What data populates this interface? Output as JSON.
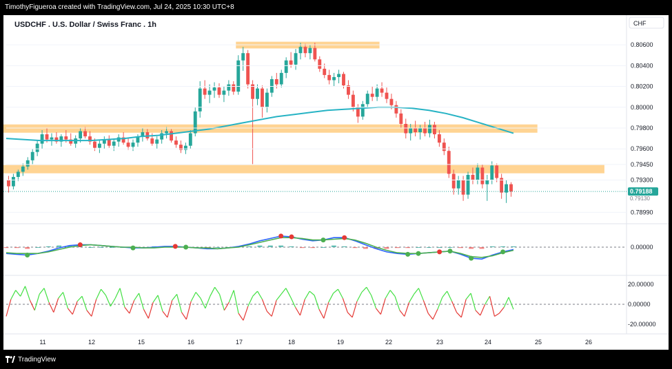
{
  "header": {
    "text": "TimothyFigueroa created with TradingView.com, Jul 24, 2025 10:30 UTC+8"
  },
  "footer": {
    "logo_icon": "tradingview-logo-icon",
    "text": "TradingView"
  },
  "chart_data": {
    "type": "candlestick",
    "title": "USDCHF . U.S. Dollar / Swiss Franc . 1h",
    "currency_label": "CHF",
    "last_price_label": "0.79188",
    "last_price_secondary": "0.79130",
    "price_axis_ticks": [
      "0.80600",
      "0.80400",
      "0.80200",
      "0.80000",
      "0.79800",
      "0.79600",
      "0.79450",
      "0.79300",
      "0.78990"
    ],
    "ylim": [
      0.789,
      0.807
    ],
    "x_ticks": [
      "11",
      "12",
      "15",
      "16",
      "17",
      "18",
      "19",
      "22",
      "23",
      "24",
      "25",
      "26"
    ],
    "x_tick_dates": [
      11,
      12,
      15,
      16,
      17,
      18,
      19,
      22,
      23,
      24,
      25,
      26
    ],
    "colors": {
      "up": "#26a69a",
      "down": "#ef5350",
      "zone": "#ffcc80",
      "ma": "#26b3c4",
      "macd": "#2962ff",
      "signal": "#4caf50",
      "lower_up": "#42e042",
      "lower_down": "#e53935",
      "last_price": "#26a69a"
    },
    "ohlc": [
      [
        0.793,
        0.7934,
        0.7918,
        0.7924
      ],
      [
        0.7924,
        0.7936,
        0.7921,
        0.7933
      ],
      [
        0.7933,
        0.794,
        0.7929,
        0.7938
      ],
      [
        0.7938,
        0.7946,
        0.7934,
        0.7943
      ],
      [
        0.7943,
        0.7952,
        0.794,
        0.7949
      ],
      [
        0.7949,
        0.796,
        0.7945,
        0.7957
      ],
      [
        0.7957,
        0.7968,
        0.7953,
        0.7965
      ],
      [
        0.7965,
        0.7978,
        0.796,
        0.7974
      ],
      [
        0.7974,
        0.798,
        0.7966,
        0.7969
      ],
      [
        0.7969,
        0.7975,
        0.7963,
        0.7971
      ],
      [
        0.7971,
        0.7976,
        0.7965,
        0.7967
      ],
      [
        0.7967,
        0.7974,
        0.7962,
        0.7972
      ],
      [
        0.7972,
        0.7978,
        0.7966,
        0.7969
      ],
      [
        0.7969,
        0.7975,
        0.7963,
        0.7965
      ],
      [
        0.7965,
        0.7973,
        0.7961,
        0.797
      ],
      [
        0.797,
        0.798,
        0.7966,
        0.7977
      ],
      [
        0.7977,
        0.7981,
        0.797,
        0.7972
      ],
      [
        0.7972,
        0.7977,
        0.7964,
        0.7967
      ],
      [
        0.7967,
        0.797,
        0.7958,
        0.7961
      ],
      [
        0.7961,
        0.7968,
        0.7956,
        0.7965
      ],
      [
        0.7965,
        0.7972,
        0.796,
        0.7969
      ],
      [
        0.7969,
        0.7973,
        0.7961,
        0.7963
      ],
      [
        0.7963,
        0.797,
        0.7958,
        0.7967
      ],
      [
        0.7967,
        0.7974,
        0.7962,
        0.7971
      ],
      [
        0.7971,
        0.7976,
        0.7964,
        0.7966
      ],
      [
        0.7966,
        0.7971,
        0.7959,
        0.7962
      ],
      [
        0.7962,
        0.7969,
        0.7958,
        0.7966
      ],
      [
        0.7966,
        0.7974,
        0.7962,
        0.7972
      ],
      [
        0.7972,
        0.798,
        0.7967,
        0.7976
      ],
      [
        0.7976,
        0.7979,
        0.7968,
        0.797
      ],
      [
        0.797,
        0.7975,
        0.7963,
        0.7965
      ],
      [
        0.7965,
        0.7972,
        0.796,
        0.7969
      ],
      [
        0.7969,
        0.7978,
        0.7965,
        0.7975
      ],
      [
        0.7975,
        0.7981,
        0.797,
        0.7977
      ],
      [
        0.7977,
        0.7979,
        0.7966,
        0.7968
      ],
      [
        0.7968,
        0.7972,
        0.7961,
        0.7964
      ],
      [
        0.7964,
        0.7968,
        0.7956,
        0.7959
      ],
      [
        0.7959,
        0.7966,
        0.7955,
        0.7963
      ],
      [
        0.7963,
        0.7978,
        0.796,
        0.7975
      ],
      [
        0.7975,
        0.8,
        0.7972,
        0.7996
      ],
      [
        0.7996,
        0.8025,
        0.799,
        0.8018
      ],
      [
        0.8018,
        0.8026,
        0.8008,
        0.8012
      ],
      [
        0.8012,
        0.8022,
        0.8004,
        0.8016
      ],
      [
        0.8016,
        0.8024,
        0.8009,
        0.8019
      ],
      [
        0.8019,
        0.8023,
        0.8009,
        0.8012
      ],
      [
        0.8012,
        0.802,
        0.8005,
        0.8016
      ],
      [
        0.8016,
        0.8026,
        0.8011,
        0.8022
      ],
      [
        0.8022,
        0.8025,
        0.8012,
        0.8015
      ],
      [
        0.8015,
        0.805,
        0.8012,
        0.8045
      ],
      [
        0.8045,
        0.8058,
        0.8035,
        0.8052
      ],
      [
        0.8052,
        0.8055,
        0.8018,
        0.8022
      ],
      [
        0.8022,
        0.8026,
        0.7945,
        0.8008
      ],
      [
        0.8008,
        0.8022,
        0.8002,
        0.8018
      ],
      [
        0.8018,
        0.8021,
        0.799,
        0.8
      ],
      [
        0.8,
        0.8018,
        0.7995,
        0.8014
      ],
      [
        0.8014,
        0.803,
        0.801,
        0.8027
      ],
      [
        0.8027,
        0.8033,
        0.8018,
        0.8022
      ],
      [
        0.8022,
        0.8036,
        0.8019,
        0.8033
      ],
      [
        0.8033,
        0.8048,
        0.8028,
        0.8045
      ],
      [
        0.8045,
        0.8053,
        0.8038,
        0.8041
      ],
      [
        0.8041,
        0.8056,
        0.8036,
        0.8052
      ],
      [
        0.8052,
        0.8062,
        0.8046,
        0.8058
      ],
      [
        0.8058,
        0.8061,
        0.8048,
        0.8052
      ],
      [
        0.8052,
        0.806,
        0.8046,
        0.8057
      ],
      [
        0.8057,
        0.8062,
        0.8044,
        0.8046
      ],
      [
        0.8046,
        0.8049,
        0.8034,
        0.8037
      ],
      [
        0.8037,
        0.8042,
        0.8028,
        0.8031
      ],
      [
        0.8031,
        0.8036,
        0.8022,
        0.8026
      ],
      [
        0.8026,
        0.8033,
        0.802,
        0.8029
      ],
      [
        0.8029,
        0.8036,
        0.8023,
        0.8032
      ],
      [
        0.8032,
        0.8034,
        0.8018,
        0.8021
      ],
      [
        0.8021,
        0.8026,
        0.8008,
        0.8012
      ],
      [
        0.8012,
        0.8016,
        0.7996,
        0.8
      ],
      [
        0.8,
        0.8003,
        0.7985,
        0.7991
      ],
      [
        0.7991,
        0.8006,
        0.7988,
        0.8003
      ],
      [
        0.8003,
        0.8016,
        0.7999,
        0.8013
      ],
      [
        0.8013,
        0.802,
        0.8006,
        0.801
      ],
      [
        0.801,
        0.8022,
        0.8006,
        0.8018
      ],
      [
        0.8018,
        0.8024,
        0.801,
        0.8014
      ],
      [
        0.8014,
        0.8019,
        0.8004,
        0.8008
      ],
      [
        0.8008,
        0.8013,
        0.7998,
        0.8002
      ],
      [
        0.8002,
        0.8006,
        0.799,
        0.7994
      ],
      [
        0.7994,
        0.7998,
        0.798,
        0.7984
      ],
      [
        0.7984,
        0.7989,
        0.797,
        0.7975
      ],
      [
        0.7975,
        0.7984,
        0.7968,
        0.798
      ],
      [
        0.798,
        0.7987,
        0.7972,
        0.7976
      ],
      [
        0.7976,
        0.7983,
        0.7969,
        0.798
      ],
      [
        0.798,
        0.7986,
        0.7972,
        0.7975
      ],
      [
        0.7975,
        0.7988,
        0.7971,
        0.7983
      ],
      [
        0.7983,
        0.7986,
        0.797,
        0.7974
      ],
      [
        0.7974,
        0.7978,
        0.7962,
        0.7966
      ],
      [
        0.7966,
        0.797,
        0.7954,
        0.7958
      ],
      [
        0.7958,
        0.7962,
        0.7932,
        0.7936
      ],
      [
        0.7936,
        0.794,
        0.7916,
        0.7922
      ],
      [
        0.7922,
        0.7934,
        0.7916,
        0.793
      ],
      [
        0.793,
        0.7934,
        0.791,
        0.7916
      ],
      [
        0.7916,
        0.7938,
        0.7912,
        0.7935
      ],
      [
        0.7935,
        0.7942,
        0.7926,
        0.793
      ],
      [
        0.793,
        0.7946,
        0.7926,
        0.7942
      ],
      [
        0.7942,
        0.7945,
        0.7922,
        0.7926
      ],
      [
        0.7926,
        0.7935,
        0.791,
        0.793
      ],
      [
        0.793,
        0.7948,
        0.7926,
        0.7944
      ],
      [
        0.7944,
        0.7946,
        0.7928,
        0.7932
      ],
      [
        0.7932,
        0.7936,
        0.7912,
        0.7918
      ],
      [
        0.7918,
        0.793,
        0.7908,
        0.7926
      ],
      [
        0.7926,
        0.7928,
        0.7914,
        0.7919
      ]
    ],
    "ma": [
      0.797,
      0.7969,
      0.7968,
      0.7968,
      0.7968,
      0.7968,
      0.7969,
      0.797,
      0.7972,
      0.7973,
      0.7975,
      0.7977,
      0.7979,
      0.7982,
      0.7985,
      0.7988,
      0.7991,
      0.7993,
      0.7995,
      0.7997,
      0.7998,
      0.7999,
      0.8,
      0.8,
      0.7999,
      0.7997,
      0.7994,
      0.799,
      0.7985,
      0.798,
      0.7975
    ],
    "resistance_zones": [
      {
        "price_low": 0.80585,
        "price_high": 0.8061,
        "start": 48,
        "end": 77
      },
      {
        "price_low": 0.79775,
        "price_high": 0.79815,
        "start": 0,
        "end": 110
      },
      {
        "price_low": 0.79385,
        "price_high": 0.79425,
        "start": 0,
        "end": 124
      }
    ],
    "macd_panel": {
      "ticks": [
        "0.00000"
      ],
      "macd": [
        -8,
        -9,
        -10,
        -8,
        -5,
        -1,
        2,
        3,
        3,
        2,
        1,
        0,
        -1,
        -1,
        0,
        1,
        1,
        0,
        -1,
        -2,
        -2,
        -1,
        1,
        4,
        8,
        11,
        14,
        13,
        10,
        8,
        9,
        12,
        12,
        8,
        3,
        -2,
        -6,
        -8,
        -9,
        -8,
        -7,
        -6,
        -5,
        -9,
        -14,
        -15,
        -10,
        -6,
        -3
      ],
      "signal": [
        -7,
        -8,
        -8,
        -8,
        -6,
        -3,
        0,
        2,
        3,
        2,
        1,
        0,
        0,
        -1,
        -1,
        0,
        0,
        0,
        -1,
        -1,
        -2,
        -1,
        0,
        3,
        6,
        9,
        12,
        12,
        11,
        9,
        9,
        10,
        11,
        9,
        5,
        0,
        -4,
        -7,
        -8,
        -8,
        -7,
        -6,
        -5,
        -8,
        -12,
        -13,
        -11,
        -7,
        -4
      ],
      "cross_points": [
        {
          "i": 2,
          "color": "#4caf50"
        },
        {
          "i": 7,
          "color": "#e53935"
        },
        {
          "i": 12,
          "color": "#4caf50"
        },
        {
          "i": 16,
          "color": "#e53935"
        },
        {
          "i": 17,
          "color": "#4caf50"
        },
        {
          "i": 26,
          "color": "#e53935"
        },
        {
          "i": 27,
          "color": "#e53935"
        },
        {
          "i": 30,
          "color": "#4caf50"
        },
        {
          "i": 32,
          "color": "#e53935"
        },
        {
          "i": 38,
          "color": "#4caf50"
        },
        {
          "i": 39,
          "color": "#4caf50"
        },
        {
          "i": 41,
          "color": "#e53935"
        },
        {
          "i": 42,
          "color": "#4caf50"
        },
        {
          "i": 44,
          "color": "#4caf50"
        },
        {
          "i": 47,
          "color": "#4caf50"
        }
      ]
    },
    "oscillator_panel": {
      "ticks": [
        "20.00000",
        "0.00000",
        "-20.00000"
      ],
      "ylim": [
        -24,
        24
      ],
      "values": [
        -12,
        5,
        14,
        8,
        18,
        4,
        -6,
        10,
        16,
        2,
        -8,
        6,
        12,
        -4,
        -10,
        3,
        8,
        -6,
        -12,
        5,
        15,
        9,
        -2,
        6,
        16,
        -3,
        -9,
        4,
        11,
        -5,
        -14,
        2,
        9,
        -7,
        -13,
        4,
        10,
        -8,
        -15,
        3,
        12,
        6,
        -4,
        8,
        17,
        10,
        -6,
        2,
        14,
        -9,
        -16,
        -2,
        8,
        13,
        5,
        -7,
        -12,
        4,
        10,
        16,
        7,
        -3,
        -11,
        5,
        13,
        9,
        -5,
        -14,
        2,
        11,
        15,
        6,
        -8,
        -13,
        3,
        12,
        17,
        9,
        -4,
        -10,
        6,
        14,
        8,
        -6,
        -12,
        2,
        10,
        16,
        4,
        -9,
        -15,
        -5,
        7,
        13,
        3,
        -8,
        -13,
        5,
        11,
        -6,
        -11,
        0,
        8,
        -12,
        -9,
        -3,
        7,
        -5
      ]
    }
  }
}
